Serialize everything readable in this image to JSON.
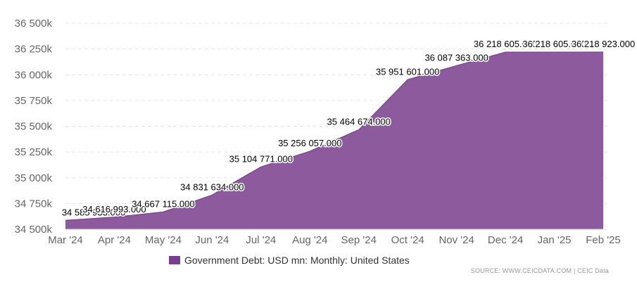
{
  "chart_data": {
    "type": "area",
    "title": "",
    "xlabel": "",
    "ylabel": "",
    "categories": [
      "Mar '24",
      "Apr '24",
      "May '24",
      "Jun '24",
      "Jul '24",
      "Aug '24",
      "Sep '24",
      "Oct '24",
      "Nov '24",
      "Dec '24",
      "Jan '25",
      "Feb '25"
    ],
    "series": [
      {
        "name": "Government Debt: USD mn: Monthly: United States",
        "values": [
          34585933.0,
          34616993.0,
          34667115.0,
          34831634.0,
          35104771.0,
          35256057.0,
          35464674.0,
          35951601.0,
          36087363.0,
          36218605.0,
          36218605.0,
          36218923.0
        ],
        "labels": [
          "34 585 933.000",
          "34 616 993.000",
          "34 667 115.000",
          "34 831 634.000",
          "35 104 771.000",
          "35 256 057.000",
          "35 464 674.000",
          "35 951 601.000",
          "36 087 363.000",
          "36 218 605.000",
          "36 218 605.000",
          "36 218 923.000"
        ]
      }
    ],
    "ylim": [
      34500000,
      36500000
    ],
    "y_ticks": [
      34500000,
      34750000,
      35000000,
      35250000,
      35500000,
      35750000,
      36000000,
      36250000,
      36500000
    ],
    "y_tick_labels": [
      "34 500k",
      "34 750k",
      "35 000k",
      "35 250k",
      "35 500k",
      "35 750k",
      "36 000k",
      "36 250k",
      "36 500k"
    ],
    "grid": true,
    "legend_position": "bottom",
    "color": "#8e5a9e",
    "legend_color": "#7a3f8c"
  },
  "source_text": "SOURCE: WWW.CEICDATA.COM | CEIC Data"
}
